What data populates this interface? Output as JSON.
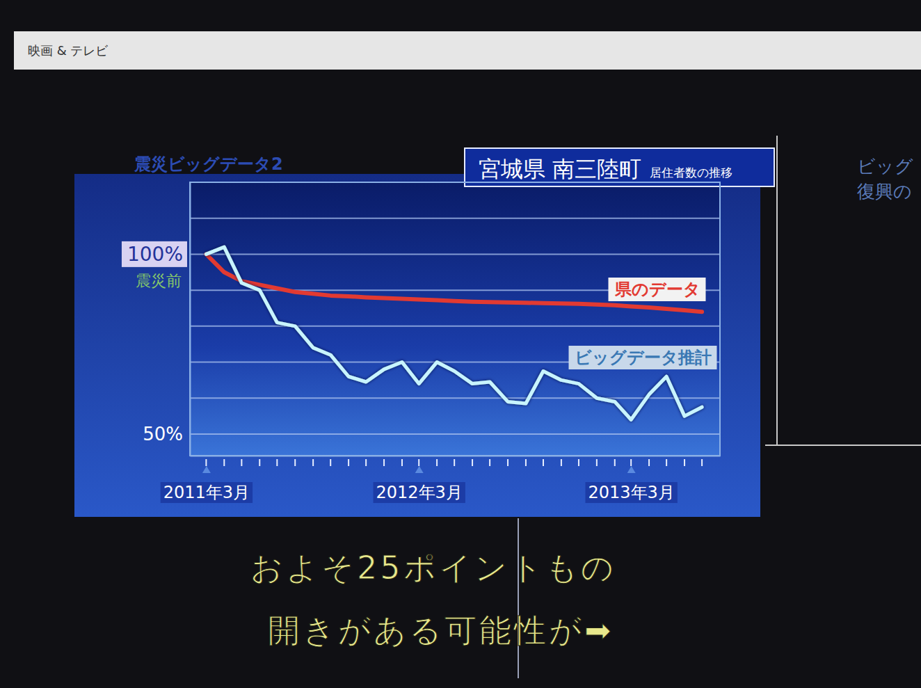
{
  "window_title": "映画 & テレビ",
  "side_text": [
    "ビッグ",
    "復興の"
  ],
  "chart_data": {
    "type": "line",
    "header": "震災ビッグデータ2",
    "title": "宮城県 南三陸町",
    "subtitle": "居住者数の推移",
    "x": [
      "2011-03",
      "2011-04",
      "2011-05",
      "2011-06",
      "2011-07",
      "2011-08",
      "2011-09",
      "2011-10",
      "2011-11",
      "2011-12",
      "2012-01",
      "2012-02",
      "2012-03",
      "2012-04",
      "2012-05",
      "2012-06",
      "2012-07",
      "2012-08",
      "2012-09",
      "2012-10",
      "2012-11",
      "2012-12",
      "2013-01",
      "2013-02",
      "2013-03",
      "2013-04",
      "2013-05",
      "2013-06",
      "2013-07"
    ],
    "xlim": [
      "2011-02",
      "2013-08"
    ],
    "xticks": [
      {
        "value": "2011-03",
        "label": "2011年3月"
      },
      {
        "value": "2012-03",
        "label": "2012年3月"
      },
      {
        "value": "2013-03",
        "label": "2013年3月"
      }
    ],
    "ylim": [
      44,
      120
    ],
    "yticks": [
      {
        "value": 100,
        "label": "100%"
      },
      {
        "value": 50,
        "label": "50%"
      }
    ],
    "y_tick_note": "震災前",
    "grid": true,
    "gridlines": [
      50,
      60,
      70,
      80,
      90,
      100,
      110
    ],
    "series": [
      {
        "name": "県のデータ",
        "color": "#e23a32",
        "values": [
          100,
          95,
          92.5,
          91.5,
          90.5,
          89.5,
          89,
          88.5,
          88.3,
          88,
          87.8,
          87.6,
          87.4,
          87.2,
          87,
          86.8,
          86.7,
          86.6,
          86.5,
          86.4,
          86.3,
          86.2,
          86,
          85.8,
          85.5,
          85.2,
          84.8,
          84.4,
          84
        ]
      },
      {
        "name": "ビッグデータ推計",
        "color": "#c8f4ff",
        "values": [
          100,
          102,
          92,
          90,
          81,
          80,
          74,
          72,
          66,
          64.5,
          68,
          70,
          64,
          70,
          67.5,
          64,
          64.5,
          59,
          58.5,
          67.5,
          65,
          64,
          60,
          59,
          54,
          61,
          66,
          55,
          57.5
        ]
      }
    ],
    "caption": [
      "およそ25ポイントもの",
      "開きがある可能性が➡"
    ]
  }
}
